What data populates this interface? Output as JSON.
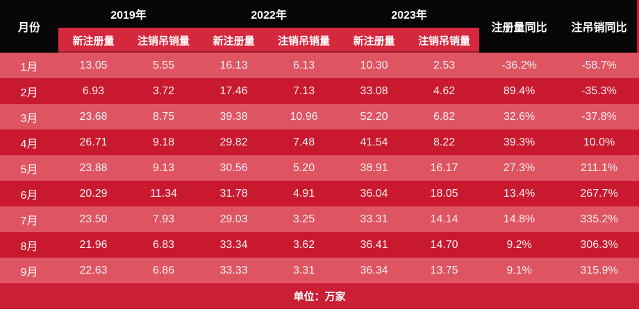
{
  "header": {
    "month_col": "月份",
    "year_groups": [
      {
        "label": "2019年",
        "sub_cols": [
          "新注册量",
          "注销吊销量"
        ]
      },
      {
        "label": "2022年",
        "sub_cols": [
          "新注册量",
          "注销吊销量"
        ]
      },
      {
        "label": "2023年",
        "sub_cols": [
          "新注册量",
          "注销吊销量"
        ]
      }
    ],
    "yoy_cols": [
      "注册量同比",
      "注吊销同比"
    ]
  },
  "footer": {
    "unit_label": "单位：万家"
  },
  "colors": {
    "header_bg": "#060606",
    "subheader_bg": "#D5273D",
    "row_light": "#DF5462",
    "row_dark": "#C9192F",
    "footer_bg": "#CB1F35",
    "text_white": "#FFFFFF",
    "text_value": "#FBF0F1"
  },
  "chart_data": {
    "type": "table",
    "title": "",
    "unit": "万家",
    "columns": [
      "月份",
      "2019年 新注册量",
      "2019年 注销吊销量",
      "2022年 新注册量",
      "2022年 注销吊销量",
      "2023年 新注册量",
      "2023年 注销吊销量",
      "注册量同比",
      "注吊销同比"
    ],
    "rows": [
      [
        "1月",
        "13.05",
        "5.55",
        "16.13",
        "6.13",
        "10.30",
        "2.53",
        "-36.2%",
        "-58.7%"
      ],
      [
        "2月",
        "6.93",
        "3.72",
        "17.46",
        "7.13",
        "33.08",
        "4.62",
        "89.4%",
        "-35.3%"
      ],
      [
        "3月",
        "23.68",
        "8.75",
        "39.38",
        "10.96",
        "52.20",
        "6.82",
        "32.6%",
        "-37.8%"
      ],
      [
        "4月",
        "26.71",
        "9.18",
        "29.82",
        "7.48",
        "41.54",
        "8.22",
        "39.3%",
        "10.0%"
      ],
      [
        "5月",
        "23.88",
        "9.13",
        "30.56",
        "5.20",
        "38.91",
        "16.17",
        "27.3%",
        "211.1%"
      ],
      [
        "6月",
        "20.29",
        "11.34",
        "31.78",
        "4.91",
        "36.04",
        "18.05",
        "13.4%",
        "267.7%"
      ],
      [
        "7月",
        "23.50",
        "7.93",
        "29.03",
        "3.25",
        "33.31",
        "14.14",
        "14.8%",
        "335.2%"
      ],
      [
        "8月",
        "21.96",
        "6.83",
        "33.34",
        "3.62",
        "36.41",
        "14.70",
        "9.2%",
        "306.3%"
      ],
      [
        "9月",
        "22.63",
        "6.86",
        "33.33",
        "3.31",
        "36.34",
        "13.75",
        "9.1%",
        "315.9%"
      ]
    ]
  }
}
